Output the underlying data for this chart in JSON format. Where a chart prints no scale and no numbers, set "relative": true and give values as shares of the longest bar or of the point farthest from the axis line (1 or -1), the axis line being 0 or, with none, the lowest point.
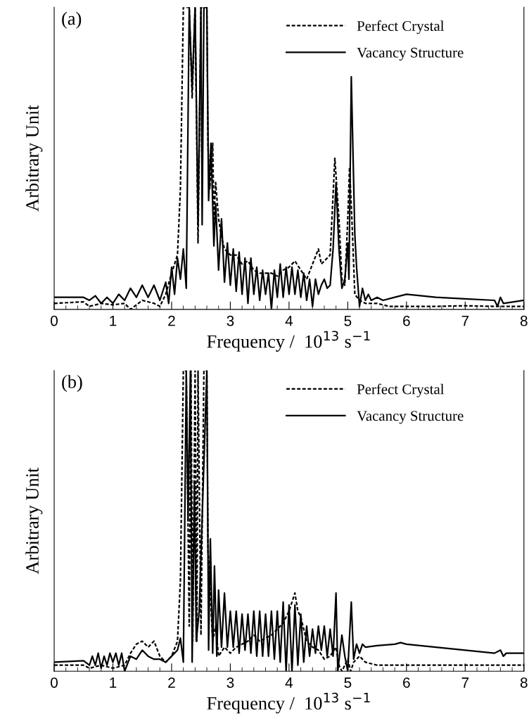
{
  "chart_data": [
    {
      "type": "line",
      "relative": true,
      "xlabel": "Frequency /  10$^{13}$ s$^{−1}$",
      "ylabel": "Arbitrary Unit",
      "annotations": [
        "(a)"
      ],
      "xlim": [
        0,
        8
      ],
      "xticks": [
        0,
        1,
        2,
        3,
        4,
        5,
        6,
        7,
        8
      ],
      "legend": "top right",
      "tick_labels": "x",
      "series": [
        {
          "name": "Perfect Crystal",
          "color": "#000000",
          "line_style": "dashed",
          "x": [
            0,
            0.5,
            0.6,
            0.8,
            1.0,
            1.2,
            1.3,
            1.5,
            1.7,
            1.8,
            1.9,
            2.0,
            2.1,
            2.15,
            2.2,
            2.25,
            2.3,
            2.35,
            2.4,
            2.45,
            2.5,
            2.55,
            2.6,
            2.62,
            2.65,
            2.7,
            2.72,
            2.75,
            2.8,
            2.85,
            2.9,
            3.0,
            3.1,
            3.2,
            3.3,
            3.4,
            3.5,
            3.6,
            3.7,
            3.8,
            3.9,
            4.0,
            4.1,
            4.2,
            4.3,
            4.4,
            4.5,
            4.55,
            4.6,
            4.7,
            4.78,
            4.85,
            4.9,
            4.95,
            5.0,
            5.03,
            5.07,
            5.12,
            5.2,
            5.3,
            5.5,
            5.7,
            6.0,
            6.5,
            7.0,
            7.5,
            8.0
          ],
          "values": [
            0.02,
            0.025,
            0.01,
            0.02,
            0.015,
            0.02,
            0.0,
            0.03,
            0.02,
            0.01,
            0.05,
            0.12,
            0.18,
            0.4,
            1,
            1,
            1,
            0.7,
            1,
            0.22,
            1,
            1,
            1,
            0.54,
            0.4,
            0.55,
            0.3,
            0.42,
            0.3,
            0.24,
            0.2,
            0.18,
            0.18,
            0.15,
            0.16,
            0.13,
            0.12,
            0.12,
            0.12,
            0.11,
            0.13,
            0.14,
            0.16,
            0.13,
            0.1,
            0.15,
            0.2,
            0.15,
            0.16,
            0.18,
            0.5,
            0.3,
            0.1,
            0.08,
            0.3,
            0.47,
            0.3,
            0.05,
            0.03,
            0.02,
            0.02,
            0.01,
            0.01,
            0.01,
            0.012,
            0.01,
            0.01
          ]
        },
        {
          "name": "Vacancy Structure",
          "color": "#000000",
          "line_style": "solid",
          "x": [
            0,
            0.5,
            0.6,
            0.7,
            0.8,
            0.9,
            1.0,
            1.1,
            1.2,
            1.3,
            1.4,
            1.5,
            1.6,
            1.7,
            1.8,
            1.9,
            1.95,
            2.0,
            2.05,
            2.1,
            2.15,
            2.2,
            2.25,
            2.3,
            2.35,
            2.4,
            2.45,
            2.5,
            2.52,
            2.55,
            2.6,
            2.63,
            2.67,
            2.72,
            2.75,
            2.8,
            2.85,
            2.9,
            2.95,
            3.0,
            3.05,
            3.1,
            3.15,
            3.2,
            3.25,
            3.3,
            3.35,
            3.4,
            3.45,
            3.5,
            3.55,
            3.6,
            3.65,
            3.7,
            3.75,
            3.8,
            3.85,
            3.9,
            3.95,
            4.0,
            4.05,
            4.1,
            4.15,
            4.2,
            4.25,
            4.3,
            4.35,
            4.4,
            4.45,
            4.5,
            4.55,
            4.6,
            4.65,
            4.7,
            4.75,
            4.8,
            4.85,
            4.9,
            4.95,
            5.0,
            5.02,
            5.06,
            5.12,
            5.15,
            5.2,
            5.25,
            5.3,
            5.35,
            5.4,
            5.5,
            5.6,
            5.8,
            6.0,
            6.5,
            7.0,
            7.5,
            7.55,
            7.6,
            7.65,
            8.0
          ],
          "values": [
            0.04,
            0.04,
            0.03,
            0.045,
            0.02,
            0.04,
            0.02,
            0.05,
            0.03,
            0.07,
            0.04,
            0.08,
            0.04,
            0.08,
            0.03,
            0.09,
            0.02,
            0.14,
            0.05,
            0.17,
            0.1,
            0.2,
            0.07,
            1,
            0.73,
            1,
            0.28,
            1,
            0.28,
            1,
            1,
            0.36,
            0.55,
            0.21,
            0.35,
            0.13,
            0.3,
            0.09,
            0.22,
            0.08,
            0.2,
            0.06,
            0.19,
            0.05,
            0.17,
            0.02,
            0.17,
            0.05,
            0.14,
            0.03,
            0.13,
            0.05,
            0.12,
            0.0,
            0.13,
            0.04,
            0.15,
            0.04,
            0.14,
            0.05,
            0.14,
            0.05,
            0.13,
            0.04,
            0.12,
            0.03,
            0.1,
            0.01,
            0.1,
            0.05,
            0.08,
            0.1,
            0.07,
            0.08,
            0.2,
            0.42,
            0.2,
            0.07,
            0.1,
            0.22,
            0.1,
            0.77,
            0.25,
            0.14,
            0.01,
            0.07,
            0.03,
            0.05,
            0.03,
            0.04,
            0.03,
            0.04,
            0.05,
            0.04,
            0.035,
            0.03,
            0.01,
            0.04,
            0.02,
            0.03
          ]
        }
      ]
    },
    {
      "type": "line",
      "relative": true,
      "xlabel": "Frequency /  10$^{13}$ s$^{−1}$",
      "ylabel": "Arbitrary Unit",
      "annotations": [
        "(b)"
      ],
      "xlim": [
        0,
        8
      ],
      "xticks": [
        0,
        1,
        2,
        3,
        4,
        5,
        6,
        7,
        8
      ],
      "legend": "top right",
      "tick_labels": "x",
      "series": [
        {
          "name": "Perfect Crystal",
          "color": "#000000",
          "line_style": "dashed",
          "x": [
            0,
            0.5,
            0.6,
            0.8,
            1.0,
            1.2,
            1.3,
            1.4,
            1.5,
            1.6,
            1.7,
            1.8,
            1.9,
            2.0,
            2.1,
            2.15,
            2.2,
            2.25,
            2.3,
            2.33,
            2.36,
            2.4,
            2.43,
            2.45,
            2.5,
            2.55,
            2.6,
            2.62,
            2.65,
            2.7,
            2.75,
            2.8,
            2.9,
            3.0,
            3.1,
            3.2,
            3.3,
            3.4,
            3.5,
            3.6,
            3.7,
            3.8,
            3.9,
            4.0,
            4.1,
            4.15,
            4.2,
            4.3,
            4.4,
            4.5,
            4.6,
            4.7,
            4.8,
            4.85,
            4.9,
            5.0,
            5.05,
            5.1,
            5.2,
            5.3,
            5.5,
            5.8,
            6.0,
            6.5,
            7.0,
            7.5,
            8.0
          ],
          "values": [
            0.02,
            0.02,
            0.01,
            0.02,
            0.01,
            0.02,
            0.06,
            0.09,
            0.1,
            0.08,
            0.1,
            0.05,
            0.03,
            0.05,
            0.1,
            0.3,
            1,
            1,
            0.15,
            1,
            0.1,
            1,
            0.1,
            1,
            0.12,
            1,
            1,
            0.4,
            0.3,
            0.1,
            0.15,
            0.05,
            0.08,
            0.06,
            0.08,
            0.09,
            0.1,
            0.12,
            0.1,
            0.11,
            0.12,
            0.14,
            0.16,
            0.2,
            0.26,
            0.2,
            0.18,
            0.1,
            0.08,
            0.07,
            0.04,
            0.05,
            0.08,
            0.02,
            0.0,
            0.04,
            0.0,
            0.03,
            0.05,
            0.03,
            0.02,
            0.02,
            0.02,
            0.02,
            0.02,
            0.02,
            0.02
          ]
        },
        {
          "name": "Vacancy Structure",
          "color": "#000000",
          "line_style": "solid",
          "x": [
            0,
            0.5,
            0.6,
            0.65,
            0.7,
            0.75,
            0.8,
            0.85,
            0.9,
            0.95,
            1.0,
            1.05,
            1.1,
            1.15,
            1.2,
            1.3,
            1.4,
            1.5,
            1.6,
            1.7,
            1.8,
            1.9,
            2.0,
            2.1,
            2.15,
            2.2,
            2.25,
            2.28,
            2.32,
            2.35,
            2.39,
            2.42,
            2.47,
            2.6,
            2.63,
            2.66,
            2.7,
            2.73,
            2.77,
            2.8,
            2.85,
            2.9,
            2.95,
            3.0,
            3.05,
            3.1,
            3.15,
            3.2,
            3.25,
            3.3,
            3.35,
            3.4,
            3.45,
            3.5,
            3.55,
            3.6,
            3.65,
            3.7,
            3.75,
            3.8,
            3.85,
            3.9,
            3.95,
            4.0,
            4.05,
            4.1,
            4.15,
            4.2,
            4.25,
            4.3,
            4.35,
            4.4,
            4.45,
            4.5,
            4.55,
            4.6,
            4.65,
            4.7,
            4.75,
            4.8,
            4.83,
            4.9,
            4.95,
            5.0,
            5.06,
            5.1,
            5.15,
            5.2,
            5.25,
            5.3,
            5.5,
            5.8,
            5.9,
            6.0,
            6.5,
            7.0,
            7.5,
            7.6,
            7.65,
            7.7,
            8.0
          ],
          "values": [
            0.03,
            0.035,
            0.02,
            0.05,
            0.02,
            0.06,
            0.01,
            0.05,
            0.02,
            0.06,
            0.03,
            0.06,
            0.02,
            0.06,
            0.0,
            0.05,
            0.04,
            0.07,
            0.05,
            0.04,
            0.04,
            0.03,
            0.05,
            0.07,
            0.11,
            0.03,
            1,
            0.5,
            1,
            0.03,
            0.63,
            0.1,
            0.2,
            1,
            0.07,
            0.44,
            0.06,
            0.35,
            0.05,
            0.27,
            0.08,
            0.26,
            0.08,
            0.2,
            0.08,
            0.2,
            0.06,
            0.19,
            0.07,
            0.19,
            0.06,
            0.2,
            0.05,
            0.2,
            0.05,
            0.19,
            0.05,
            0.2,
            0.04,
            0.2,
            0.03,
            0.23,
            0.0,
            0.22,
            0.0,
            0.22,
            0.02,
            0.19,
            0.03,
            0.15,
            0.05,
            0.14,
            0.06,
            0.15,
            0.07,
            0.15,
            0.05,
            0.14,
            0.05,
            0.26,
            0.0,
            0.12,
            0.05,
            0.0,
            0.23,
            0.04,
            0.09,
            0.06,
            0.09,
            0.08,
            0.085,
            0.09,
            0.095,
            0.09,
            0.08,
            0.07,
            0.06,
            0.07,
            0.05,
            0.06,
            0.06
          ]
        }
      ]
    }
  ]
}
